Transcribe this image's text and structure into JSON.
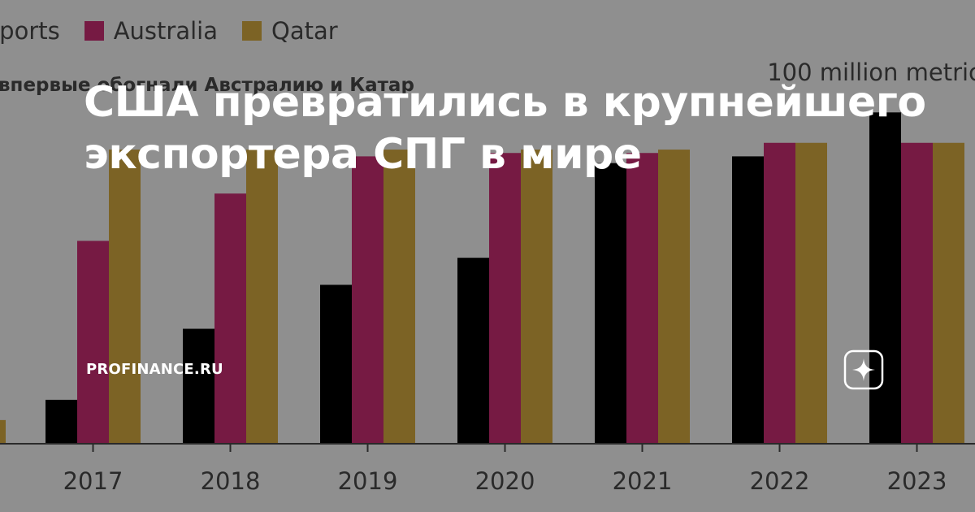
{
  "headline": "США превратились в крупнейшего экспортера СПГ в мире",
  "source": "PROFINANCE.RU",
  "colors": {
    "background": "#8f8f8f",
    "us": "#000000",
    "australia": "#761a43",
    "qatar": "#7c6325",
    "axis": "#2a2a2a",
    "headline": "#ffffff"
  },
  "icons": [
    "zen-star-icon"
  ],
  "chart_data": {
    "type": "bar",
    "subtitle": "впервые обогнали Австралию и Катар",
    "unit_label": "100 million metric",
    "legend_position": "top-left",
    "grid": false,
    "categories": [
      "2017",
      "2018",
      "2019",
      "2020",
      "2021",
      "2022",
      "2023"
    ],
    "series": [
      {
        "name": "xports",
        "values": [
          13,
          34,
          47,
          55,
          83,
          85,
          98
        ]
      },
      {
        "name": "Australia",
        "values": [
          60,
          74,
          85,
          86,
          86,
          89,
          89
        ]
      },
      {
        "name": "Qatar",
        "values": [
          87,
          87,
          87,
          87,
          87,
          89,
          89
        ]
      }
    ],
    "ylim": [
      0,
      100
    ],
    "partial_left_bar": {
      "series": "Qatar",
      "value": 7
    }
  }
}
